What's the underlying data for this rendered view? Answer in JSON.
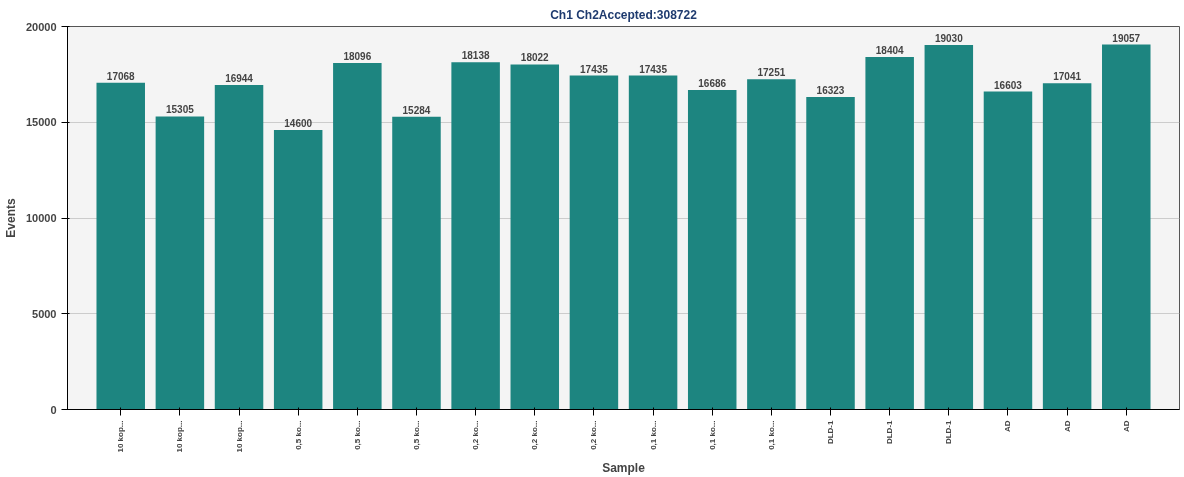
{
  "chart_data": {
    "type": "bar",
    "title": "Ch1 Ch2Accepted:308722",
    "xlabel": "Sample",
    "ylabel": "Events",
    "categories": [
      "10 kop...",
      "10 kop...",
      "10 kop...",
      "0,5 ko...",
      "0,5 ko...",
      "0,5 ko...",
      "0,2 ko...",
      "0,2 ko...",
      "0,2 ko...",
      "0,1 ko...",
      "0,1 ko...",
      "0,1 ko...",
      "DLD-1",
      "DLD-1",
      "DLD-1",
      "AD",
      "AD",
      "AD"
    ],
    "values": [
      17068,
      15305,
      16944,
      14600,
      18096,
      15284,
      18138,
      18022,
      17435,
      17435,
      16686,
      17251,
      16323,
      18404,
      19030,
      16603,
      17041,
      19057
    ],
    "color": "#1d8580",
    "ylim": [
      0,
      20000
    ],
    "yticks": [
      0,
      5000,
      10000,
      15000,
      20000
    ],
    "grid": "y",
    "data_labels": true
  }
}
